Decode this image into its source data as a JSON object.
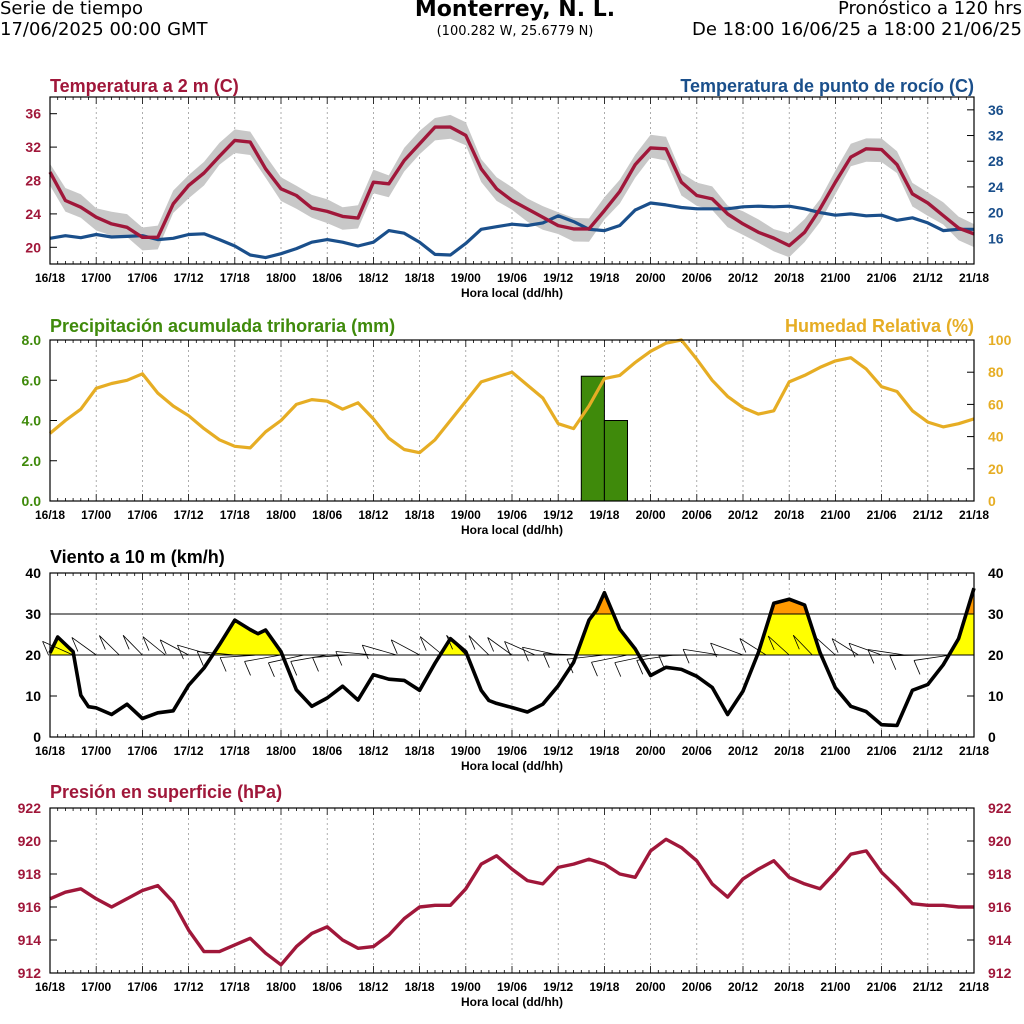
{
  "header": {
    "left_line1": "Serie de tiempo",
    "left_line2": "17/06/2025 00:00 GMT",
    "city": "Monterrey, N. L.",
    "coords": "(100.282 W, 25.6779 N)",
    "right_line1": "Pronóstico a 120 hrs",
    "right_line2": "De 18:00 16/06/25 a 18:00 21/06/25"
  },
  "colors": {
    "temp": "#a0173a",
    "dew": "#1a4f8b",
    "precip": "#3f8a0b",
    "rh": "#e6ad24",
    "wind": "#000000",
    "wind_fill_low": "#ffff00",
    "wind_fill_high": "#ff9900",
    "band": "#c8c8c8"
  },
  "time_ticks": [
    "16/18",
    "17/00",
    "17/06",
    "17/12",
    "17/18",
    "18/00",
    "18/06",
    "18/12",
    "18/18",
    "19/00",
    "19/06",
    "19/12",
    "19/18",
    "20/00",
    "20/06",
    "20/12",
    "20/18",
    "21/00",
    "21/06",
    "21/12",
    "21/18"
  ],
  "xlabel": "Hora local (dd/hh)",
  "chart_data": [
    {
      "type": "line",
      "title_left": "Temperatura a 2 m (C)",
      "title_right": "Temperatura de punto de rocío (C)",
      "xlabel": "Hora local (dd/hh)",
      "x_range": [
        0,
        120
      ],
      "ylim_left": [
        18,
        38
      ],
      "ylim_right": [
        12,
        38
      ],
      "left_ticks": [
        20,
        24,
        28,
        32,
        36
      ],
      "right_ticks": [
        16,
        20,
        24,
        28,
        32,
        36
      ],
      "series": [
        {
          "name": "Temperatura a 2 m",
          "axis": "left",
          "x": [
            0,
            2,
            4,
            6,
            8,
            10,
            12,
            14,
            16,
            18,
            20,
            22,
            24,
            26,
            28,
            30,
            32,
            34,
            36,
            38,
            40,
            42,
            44,
            46,
            48,
            50,
            52,
            54,
            56,
            58,
            60,
            62,
            64,
            66,
            68,
            70,
            72,
            74,
            76,
            78,
            80,
            82,
            84,
            86,
            88,
            90,
            92,
            94,
            96,
            98,
            100,
            102,
            104,
            106,
            108,
            110,
            112,
            114,
            116,
            118,
            120
          ],
          "values": [
            29,
            25.6,
            24.8,
            23.6,
            22.8,
            22.4,
            21.2,
            21.2,
            25.2,
            27.4,
            28.9,
            30.9,
            32.8,
            32.6,
            29.4,
            27,
            26.2,
            24.7,
            24.3,
            23.7,
            23.5,
            27.8,
            27.6,
            30.4,
            32.4,
            34.4,
            34.4,
            33.4,
            29.4,
            27,
            25.6,
            24.6,
            23.6,
            22.6,
            22.2,
            22.2,
            24.4,
            26.7,
            29.9,
            31.9,
            31.8,
            27.8,
            26.2,
            25.8,
            24,
            22.8,
            21.8,
            21.1,
            20.2,
            21.8,
            24.6,
            27.8,
            30.8,
            31.8,
            31.7,
            29.9,
            26.4,
            25.3,
            23.8,
            22.3,
            21.6
          ]
        },
        {
          "name": "Temperatura de punto de rocío",
          "axis": "right",
          "x": [
            0,
            2,
            4,
            6,
            8,
            10,
            12,
            14,
            16,
            18,
            20,
            22,
            24,
            26,
            28,
            30,
            32,
            34,
            36,
            38,
            40,
            42,
            44,
            46,
            48,
            50,
            52,
            54,
            56,
            58,
            60,
            62,
            64,
            66,
            68,
            70,
            72,
            74,
            76,
            78,
            80,
            82,
            84,
            86,
            88,
            90,
            92,
            94,
            96,
            98,
            100,
            102,
            104,
            106,
            108,
            110,
            112,
            114,
            116,
            118,
            120
          ],
          "values": [
            16,
            16.4,
            16.1,
            16.6,
            16.2,
            16.3,
            16.4,
            15.8,
            16,
            16.6,
            16.7,
            15.8,
            14.8,
            13.4,
            13,
            13.6,
            14.4,
            15.4,
            15.8,
            15.4,
            14.8,
            15.4,
            17.2,
            16.8,
            15.4,
            13.5,
            13.4,
            15.2,
            17.4,
            17.8,
            18.2,
            18,
            18.4,
            19.5,
            18.6,
            17.4,
            17.2,
            18,
            20.4,
            21.5,
            21.2,
            20.8,
            20.6,
            20.6,
            20.6,
            20.9,
            21,
            20.9,
            21,
            20.6,
            20,
            19.6,
            19.8,
            19.5,
            19.6,
            18.8,
            19.2,
            18.4,
            17.2,
            17.4,
            17.4
          ]
        }
      ]
    },
    {
      "type": "bar+line",
      "title_left": "Precipitación acumulada trihoraria (mm)",
      "title_right": "Humedad Relativa (%)",
      "xlabel": "Hora local (dd/hh)",
      "ylim_left": [
        0,
        8
      ],
      "ylim_right": [
        0,
        100
      ],
      "left_ticks": [
        "0.0",
        "2.0",
        "4.0",
        "6.0",
        "8.0"
      ],
      "right_ticks": [
        0,
        20,
        40,
        60,
        80,
        100
      ],
      "bars": [
        {
          "x_start": 69,
          "x_end": 72,
          "value": 6.2
        },
        {
          "x_start": 72,
          "x_end": 75,
          "value": 4.0
        }
      ],
      "series": [
        {
          "name": "Humedad Relativa",
          "axis": "right",
          "x": [
            0,
            2,
            4,
            6,
            8,
            10,
            12,
            14,
            16,
            18,
            20,
            22,
            24,
            26,
            28,
            30,
            32,
            34,
            36,
            38,
            40,
            42,
            44,
            46,
            48,
            50,
            52,
            54,
            56,
            58,
            60,
            62,
            64,
            66,
            68,
            70,
            72,
            74,
            76,
            78,
            80,
            82,
            84,
            86,
            88,
            90,
            92,
            94,
            96,
            98,
            100,
            102,
            104,
            106,
            108,
            110,
            112,
            114,
            116,
            118,
            120
          ],
          "values": [
            42,
            50,
            57,
            70,
            73,
            75,
            79,
            67,
            59,
            53,
            45,
            38,
            34,
            33,
            43,
            50,
            60,
            63,
            62,
            57,
            61,
            51,
            39,
            32,
            30,
            38,
            50,
            62,
            74,
            77,
            80,
            72,
            64,
            48,
            45,
            59,
            76,
            78,
            86,
            93,
            98,
            100,
            88,
            75,
            65,
            58,
            54,
            56,
            74,
            78,
            83,
            87,
            89,
            82,
            71,
            68,
            56,
            49,
            46,
            48,
            51
          ]
        }
      ]
    },
    {
      "type": "line",
      "title_left": "Viento a 10 m (km/h)",
      "xlabel": "Hora local (dd/hh)",
      "ylim": [
        0,
        40
      ],
      "ticks": [
        0,
        10,
        20,
        30,
        40
      ],
      "thresholds": [
        20,
        30
      ],
      "series": [
        {
          "name": "Viento a 10 m",
          "x": [
            0,
            1,
            3,
            4,
            5,
            6,
            8,
            10,
            12,
            14,
            16,
            18,
            20,
            22,
            24,
            26,
            27,
            28,
            30,
            32,
            34,
            36,
            38,
            40,
            42,
            44,
            46,
            48,
            50,
            52,
            54,
            56,
            57,
            58,
            60,
            62,
            64,
            66,
            68,
            70,
            71,
            72,
            74,
            76,
            78,
            80,
            82,
            84,
            86,
            88,
            90,
            92,
            94,
            96,
            98,
            100,
            102,
            104,
            106,
            108,
            110,
            112,
            114,
            116,
            118,
            120
          ],
          "values": [
            20.5,
            24.4,
            20.8,
            10.2,
            7.4,
            7.1,
            5.5,
            8,
            4.5,
            5.9,
            6.4,
            12.6,
            16.8,
            22.5,
            28.5,
            26.2,
            25.2,
            26.1,
            20.8,
            11.5,
            7.5,
            9.5,
            12.4,
            9,
            15.2,
            14.1,
            13.8,
            11.4,
            18,
            24,
            20.8,
            11.4,
            8.9,
            8.2,
            7.2,
            6.1,
            8,
            12.5,
            18.2,
            28.5,
            31,
            35.2,
            26.3,
            21.5,
            15,
            17,
            16.5,
            14.8,
            12.1,
            5.5,
            11.2,
            20.6,
            32.6,
            33.6,
            32.2,
            20.6,
            12,
            7.5,
            6.2,
            3,
            2.8,
            11.4,
            12.8,
            17.6,
            24,
            36.3
          ]
        }
      ]
    },
    {
      "type": "line",
      "title_left": "Presión en superficie (hPa)",
      "xlabel": "Hora local (dd/hh)",
      "ylim": [
        912,
        922
      ],
      "ticks": [
        912,
        914,
        916,
        918,
        920,
        922
      ],
      "series": [
        {
          "name": "Presión en superficie",
          "x": [
            0,
            2,
            4,
            6,
            8,
            10,
            12,
            14,
            16,
            18,
            20,
            22,
            24,
            26,
            28,
            30,
            32,
            34,
            36,
            38,
            40,
            42,
            44,
            46,
            48,
            50,
            52,
            54,
            56,
            58,
            60,
            62,
            64,
            66,
            68,
            70,
            72,
            74,
            76,
            78,
            80,
            82,
            84,
            86,
            88,
            90,
            92,
            94,
            96,
            98,
            100,
            102,
            104,
            106,
            108,
            110,
            112,
            114,
            116,
            118,
            120
          ],
          "values": [
            916.5,
            916.9,
            917.1,
            916.5,
            916,
            916.5,
            917,
            917.3,
            916.3,
            914.6,
            913.3,
            913.3,
            913.7,
            914.1,
            913.2,
            912.5,
            913.6,
            914.4,
            914.8,
            914,
            913.5,
            913.6,
            914.3,
            915.3,
            916,
            916.1,
            916.1,
            917.1,
            918.6,
            919.1,
            918.3,
            917.6,
            917.4,
            918.4,
            918.6,
            918.9,
            918.6,
            918,
            917.8,
            919.4,
            920.1,
            919.6,
            918.8,
            917.4,
            916.6,
            917.7,
            918.3,
            918.8,
            917.8,
            917.4,
            917.1,
            918.1,
            919.2,
            919.4,
            918.1,
            917.2,
            916.2,
            916.1,
            916.1,
            916,
            916
          ]
        }
      ]
    }
  ]
}
